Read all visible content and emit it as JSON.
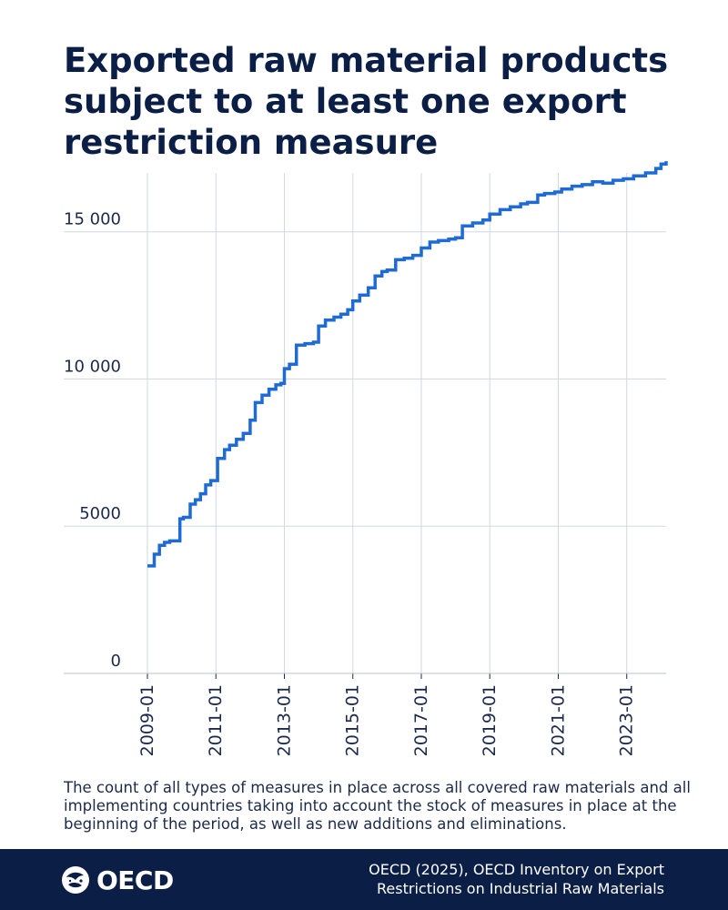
{
  "title": "Exported raw material products subject to at least one export restriction measure",
  "note": "The count of all types of measures in place across all covered raw materials and all implementing countries taking into account the stock of measures in place at the beginning of the period, as well as new additions and eliminations.",
  "source": "OECD (2025), OECD Inventory on Export Restrictions on Industrial Raw Materials",
  "logo": {
    "text": "OECD",
    "icon": "oecd-globe-icon"
  },
  "colors": {
    "line": "#1f6bd6",
    "grid": "#cfd8e3",
    "title": "#0b1e45",
    "footer": "#0b1e45"
  },
  "chart_data": {
    "type": "line",
    "title": "Exported raw material products subject to at least one export restriction measure",
    "xlabel": "",
    "ylabel": "",
    "xlim": [
      2009.0,
      2024.15
    ],
    "ylim": [
      0,
      17000
    ],
    "grid": true,
    "yticks": [
      {
        "value": 0,
        "label": "0"
      },
      {
        "value": 5000,
        "label": "5000"
      },
      {
        "value": 10000,
        "label": "10 000"
      },
      {
        "value": 15000,
        "label": "15 000"
      }
    ],
    "xticks": [
      {
        "value": 2009,
        "label": "2009-01"
      },
      {
        "value": 2011,
        "label": "2011-01"
      },
      {
        "value": 2013,
        "label": "2013-01"
      },
      {
        "value": 2015,
        "label": "2015-01"
      },
      {
        "value": 2017,
        "label": "2017-01"
      },
      {
        "value": 2019,
        "label": "2019-01"
      },
      {
        "value": 2021,
        "label": "2021-01"
      },
      {
        "value": 2023,
        "label": "2023-01"
      }
    ],
    "series": [
      {
        "name": "Exported raw material products",
        "style": "step",
        "x": [
          2009.0,
          2009.2,
          2009.35,
          2009.5,
          2009.65,
          2009.8,
          2009.95,
          2010.05,
          2010.25,
          2010.4,
          2010.55,
          2010.7,
          2010.85,
          2010.95,
          2011.05,
          2011.25,
          2011.4,
          2011.6,
          2011.8,
          2012.0,
          2012.15,
          2012.35,
          2012.55,
          2012.75,
          2012.9,
          2013.0,
          2013.15,
          2013.35,
          2013.6,
          2013.85,
          2014.0,
          2014.2,
          2014.45,
          2014.65,
          2014.85,
          2015.0,
          2015.2,
          2015.45,
          2015.65,
          2015.85,
          2016.0,
          2016.25,
          2016.5,
          2016.75,
          2017.0,
          2017.25,
          2017.5,
          2017.8,
          2018.0,
          2018.2,
          2018.5,
          2018.8,
          2019.0,
          2019.3,
          2019.6,
          2019.9,
          2020.1,
          2020.4,
          2020.6,
          2020.9,
          2021.1,
          2021.4,
          2021.7,
          2022.0,
          2022.3,
          2022.6,
          2022.9,
          2023.2,
          2023.55,
          2023.85,
          2024.0,
          2024.15
        ],
        "values": [
          3650,
          4050,
          4350,
          4450,
          4500,
          4500,
          5250,
          5300,
          5750,
          5900,
          6100,
          6400,
          6550,
          6550,
          7300,
          7600,
          7750,
          7950,
          8150,
          8600,
          9200,
          9450,
          9650,
          9800,
          9850,
          10350,
          10500,
          11150,
          11200,
          11250,
          11800,
          12000,
          12100,
          12200,
          12350,
          12650,
          12850,
          13100,
          13500,
          13650,
          13700,
          14050,
          14100,
          14200,
          14450,
          14650,
          14700,
          14750,
          14800,
          15200,
          15300,
          15400,
          15600,
          15750,
          15850,
          15950,
          16000,
          16250,
          16300,
          16350,
          16450,
          16550,
          16600,
          16700,
          16650,
          16750,
          16800,
          16900,
          17000,
          17150,
          17300,
          17400
        ]
      }
    ]
  }
}
